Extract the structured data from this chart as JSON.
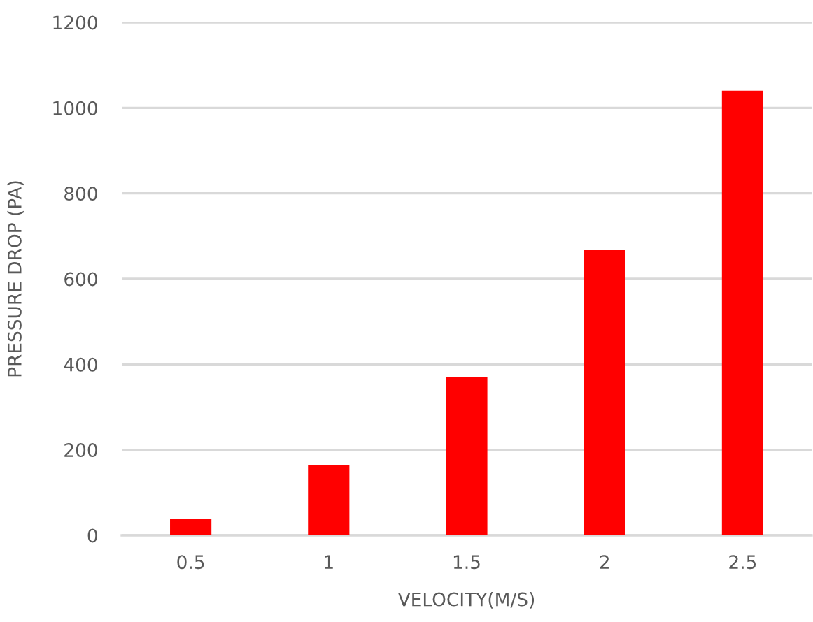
{
  "chart_data": {
    "type": "bar",
    "xlabel": "VELOCITY(M/S)",
    "ylabel": "PRESSURE DROP (PA)",
    "categories": [
      "0.5",
      "1",
      "1.5",
      "2",
      "2.5"
    ],
    "values": [
      38,
      165,
      370,
      667,
      1040
    ],
    "color": "#ff0000",
    "ylim": [
      0,
      1200
    ],
    "yticks": [
      0,
      200,
      400,
      600,
      800,
      1000,
      1200
    ],
    "grid": "y",
    "legend": false
  }
}
